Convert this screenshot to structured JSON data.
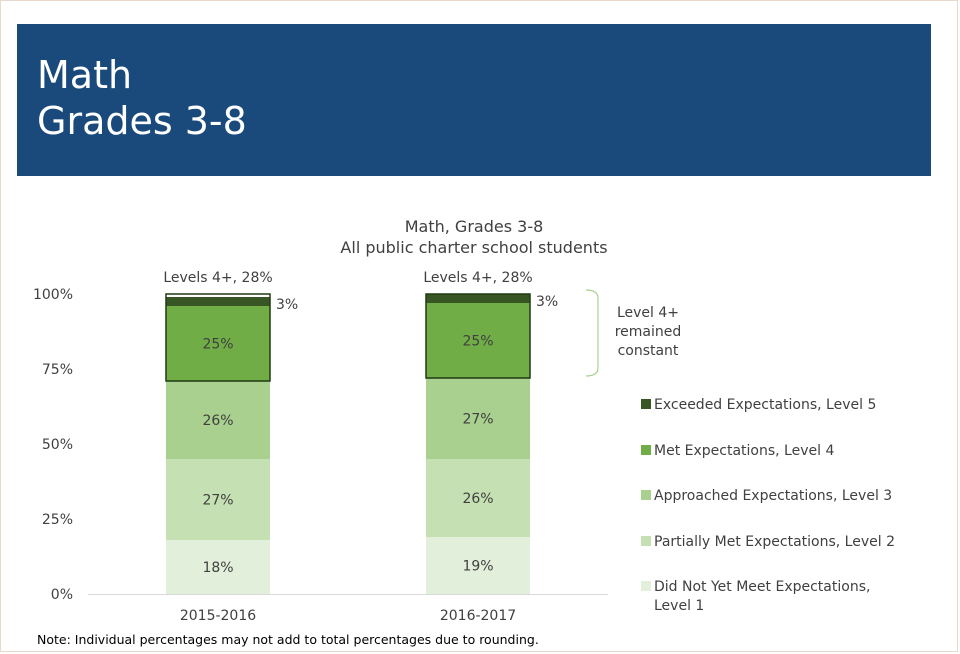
{
  "header": {
    "title_line1": "Math",
    "title_line2": "Grades 3-8"
  },
  "note": "Note: Individual percentages may not add to total percentages due to rounding.",
  "annotation": {
    "line1": "Level 4+",
    "line2": "remained",
    "line3": "constant"
  },
  "colors": {
    "header_bg": "#1a4a7c",
    "level5": "#375623",
    "level4": "#70ad47",
    "level3": "#a9d08e",
    "level2": "#c5e0b3",
    "level1": "#e2efda",
    "bracket": "#a9d08e"
  },
  "chart_data": {
    "type": "bar",
    "stacked": true,
    "title": "Math, Grades 3-8",
    "subtitle": "All public charter school students",
    "categories": [
      "2015-2016",
      "2016-2017"
    ],
    "series": [
      {
        "name": "Did Not Yet Meet Expectations, Level 1",
        "values": [
          18,
          19
        ],
        "labels": [
          "18%",
          "19%"
        ],
        "color": "#e2efda"
      },
      {
        "name": "Partially Met Expectations, Level 2",
        "values": [
          27,
          26
        ],
        "labels": [
          "27%",
          "26%"
        ],
        "color": "#c5e0b3"
      },
      {
        "name": "Approached Expectations, Level 3",
        "values": [
          26,
          27
        ],
        "labels": [
          "26%",
          "27%"
        ],
        "color": "#a9d08e"
      },
      {
        "name": "Met Expectations, Level 4",
        "values": [
          25,
          25
        ],
        "labels": [
          "25%",
          "25%"
        ],
        "color": "#70ad47"
      },
      {
        "name": "Exceeded Expectations, Level 5",
        "values": [
          3,
          3
        ],
        "labels": [
          "3%",
          "3%"
        ],
        "color": "#375623"
      }
    ],
    "top_labels": [
      "Levels 4+, 28%",
      "Levels 4+, 28%"
    ],
    "yticks": [
      "0%",
      "25%",
      "50%",
      "75%",
      "100%"
    ],
    "ylim": [
      0,
      100
    ],
    "legend": "right",
    "legend_entries": [
      {
        "lines": [
          "Exceeded Expectations, Level 5"
        ],
        "color": "#375623"
      },
      {
        "lines": [
          "Met Expectations, Level 4"
        ],
        "color": "#70ad47"
      },
      {
        "lines": [
          "Approached Expectations, Level 3"
        ],
        "color": "#a9d08e"
      },
      {
        "lines": [
          "Partially Met Expectations, Level 2"
        ],
        "color": "#c5e0b3"
      },
      {
        "lines": [
          "Did Not Yet Meet Expectations,",
          "Level 1"
        ],
        "color": "#e2efda"
      }
    ]
  }
}
